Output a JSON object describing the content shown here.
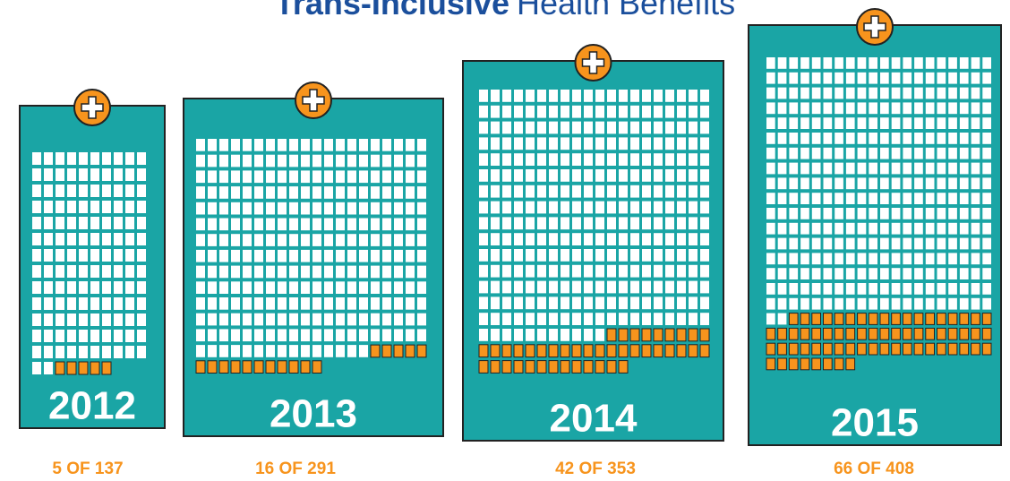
{
  "chart_data": {
    "type": "waffle",
    "title_bold": "Trans-Inclusive",
    "title_rest": "Health Benefits",
    "categories": [
      "2012",
      "2013",
      "2014",
      "2015"
    ],
    "values": [
      5,
      16,
      42,
      66
    ],
    "totals": [
      137,
      291,
      353,
      408
    ],
    "value_labels": [
      "5 OF 137",
      "16 OF 291",
      "42 OF 353",
      "66 OF 408"
    ],
    "color": "#f7941d",
    "base_color": "#ffffff",
    "card_color": "#1aa5a5"
  }
}
